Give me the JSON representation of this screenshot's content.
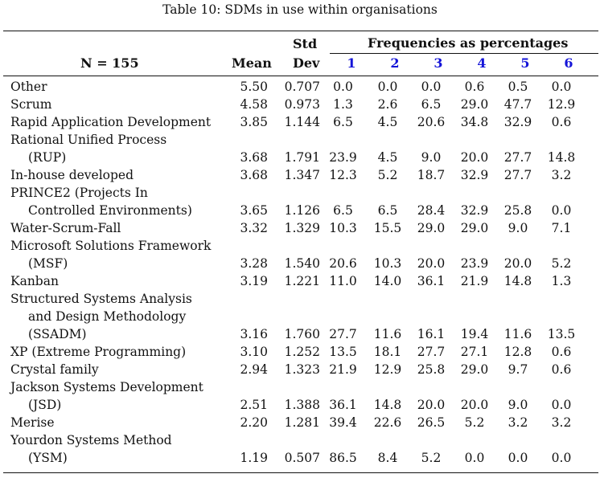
{
  "caption": "Table 10: SDMs in use within organisations",
  "header": {
    "n_label": "N = 155",
    "mean": "Mean",
    "std_line1": "Std",
    "std_line2": "Dev",
    "freq_group": "Frequencies as percentages",
    "freq_columns": [
      "1",
      "2",
      "3",
      "4",
      "5",
      "6"
    ]
  },
  "accent_color": "#1414d8",
  "rows": [
    {
      "name": [
        "Other"
      ],
      "mean": "5.50",
      "std": "0.707",
      "freq": [
        "0.0",
        "0.0",
        "0.0",
        "0.6",
        "0.5",
        "0.0"
      ]
    },
    {
      "name": [
        "Scrum"
      ],
      "mean": "4.58",
      "std": "0.973",
      "freq": [
        "1.3",
        "2.6",
        "6.5",
        "29.0",
        "47.7",
        "12.9"
      ]
    },
    {
      "name": [
        "Rapid Application Development"
      ],
      "mean": "3.85",
      "std": "1.144",
      "freq": [
        "6.5",
        "4.5",
        "20.6",
        "34.8",
        "32.9",
        "0.6"
      ]
    },
    {
      "name": [
        "Rational Unified Process",
        "(RUP)"
      ],
      "mean": "3.68",
      "std": "1.791",
      "freq": [
        "23.9",
        "4.5",
        "9.0",
        "20.0",
        "27.7",
        "14.8"
      ]
    },
    {
      "name": [
        "In-house developed"
      ],
      "mean": "3.68",
      "std": "1.347",
      "freq": [
        "12.3",
        "5.2",
        "18.7",
        "32.9",
        "27.7",
        "3.2"
      ]
    },
    {
      "name": [
        "PRINCE2 (Projects In",
        "Controlled Environments)"
      ],
      "mean": "3.65",
      "std": "1.126",
      "freq": [
        "6.5",
        "6.5",
        "28.4",
        "32.9",
        "25.8",
        "0.0"
      ]
    },
    {
      "name": [
        "Water-Scrum-Fall"
      ],
      "mean": "3.32",
      "std": "1.329",
      "freq": [
        "10.3",
        "15.5",
        "29.0",
        "29.0",
        "9.0",
        "7.1"
      ]
    },
    {
      "name": [
        "Microsoft Solutions Framework",
        "(MSF)"
      ],
      "mean": "3.28",
      "std": "1.540",
      "freq": [
        "20.6",
        "10.3",
        "20.0",
        "23.9",
        "20.0",
        "5.2"
      ]
    },
    {
      "name": [
        "Kanban"
      ],
      "mean": "3.19",
      "std": "1.221",
      "freq": [
        "11.0",
        "14.0",
        "36.1",
        "21.9",
        "14.8",
        "1.3"
      ]
    },
    {
      "name": [
        "Structured Systems Analysis",
        "and Design Methodology",
        "(SSADM)"
      ],
      "mean": "3.16",
      "std": "1.760",
      "freq": [
        "27.7",
        "11.6",
        "16.1",
        "19.4",
        "11.6",
        "13.5"
      ]
    },
    {
      "name": [
        "XP (Extreme Programming)"
      ],
      "mean": "3.10",
      "std": "1.252",
      "freq": [
        "13.5",
        "18.1",
        "27.7",
        "27.1",
        "12.8",
        "0.6"
      ]
    },
    {
      "name": [
        "Crystal family"
      ],
      "mean": "2.94",
      "std": "1.323",
      "freq": [
        "21.9",
        "12.9",
        "25.8",
        "29.0",
        "9.7",
        "0.6"
      ]
    },
    {
      "name": [
        "Jackson Systems Development",
        "(JSD)"
      ],
      "mean": "2.51",
      "std": "1.388",
      "freq": [
        "36.1",
        "14.8",
        "20.0",
        "20.0",
        "9.0",
        "0.0"
      ]
    },
    {
      "name": [
        "Merise"
      ],
      "mean": "2.20",
      "std": "1.281",
      "freq": [
        "39.4",
        "22.6",
        "26.5",
        "5.2",
        "3.2",
        "3.2"
      ]
    },
    {
      "name": [
        "Yourdon Systems Method",
        "(YSM)"
      ],
      "mean": "1.19",
      "std": "0.507",
      "freq": [
        "86.5",
        "8.4",
        "5.2",
        "0.0",
        "0.0",
        "0.0"
      ]
    }
  ]
}
